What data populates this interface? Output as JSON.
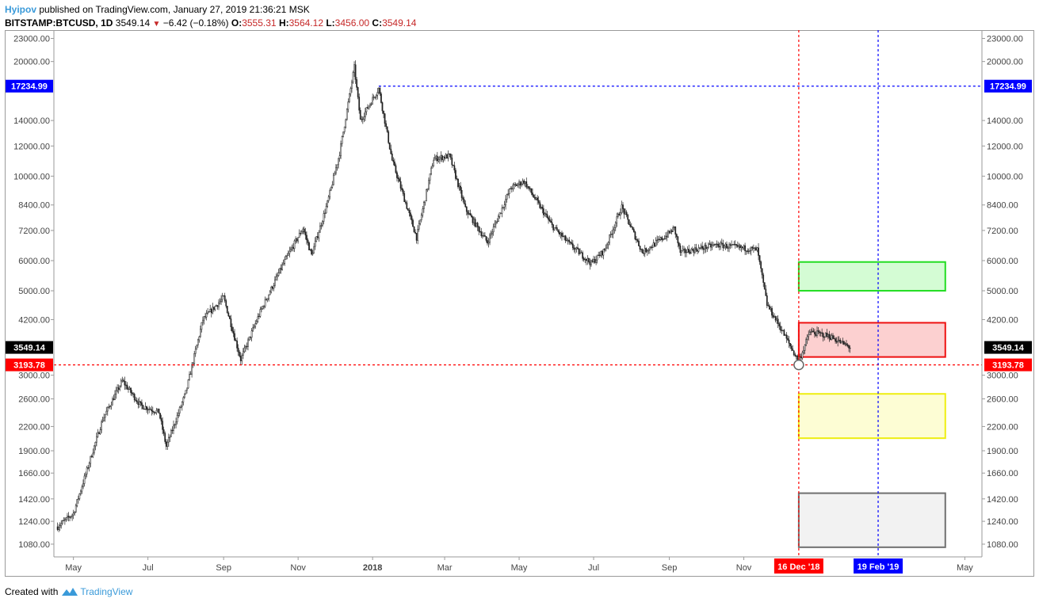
{
  "header": {
    "author": "Hyipov",
    "published_text": "published on TradingView.com, January 27, 2019 21:36:21 MSK",
    "symbol": "BITSTAMP:BTCUSD, 1D",
    "last": "3549.14",
    "change": "−6.42 (−0.18%)",
    "o_label": "O:",
    "o": "3555.31",
    "h_label": "H:",
    "h": "3564.12",
    "l_label": "L:",
    "l": "3456.00",
    "c_label": "C:",
    "c": "3549.14"
  },
  "footer": {
    "created_with": "Created with",
    "brand": "TradingView"
  },
  "chart_data": {
    "type": "candlestick",
    "scale": "log",
    "ylim": [
      1000,
      23500
    ],
    "xlim": [
      "2017-04-15",
      "2019-05-15"
    ],
    "y_ticks": [
      "23000.00",
      "20000.00",
      "14000.00",
      "12000.00",
      "10000.00",
      "8400.00",
      "7200.00",
      "6000.00",
      "5000.00",
      "4200.00",
      "3000.00",
      "2600.00",
      "2200.00",
      "1900.00",
      "1660.00",
      "1420.00",
      "1240.00",
      "1080.00"
    ],
    "x_ticks": [
      {
        "label": "May",
        "date": "2017-05-01"
      },
      {
        "label": "Jul",
        "date": "2017-07-01"
      },
      {
        "label": "Sep",
        "date": "2017-09-01"
      },
      {
        "label": "Nov",
        "date": "2017-11-01"
      },
      {
        "label": "2018",
        "date": "2018-01-01",
        "bold": true
      },
      {
        "label": "Mar",
        "date": "2018-03-01"
      },
      {
        "label": "May",
        "date": "2018-05-01"
      },
      {
        "label": "Jul",
        "date": "2018-07-01"
      },
      {
        "label": "Sep",
        "date": "2018-09-01"
      },
      {
        "label": "Nov",
        "date": "2018-11-01"
      },
      {
        "label": "May",
        "date": "2019-05-01"
      }
    ],
    "price_anchors": [
      [
        "2017-04-18",
        1200
      ],
      [
        "2017-05-01",
        1300
      ],
      [
        "2017-05-25",
        2300
      ],
      [
        "2017-06-10",
        2900
      ],
      [
        "2017-06-25",
        2500
      ],
      [
        "2017-07-10",
        2400
      ],
      [
        "2017-07-16",
        1950
      ],
      [
        "2017-08-01",
        2700
      ],
      [
        "2017-08-15",
        4200
      ],
      [
        "2017-09-01",
        4800
      ],
      [
        "2017-09-15",
        3300
      ],
      [
        "2017-10-01",
        4400
      ],
      [
        "2017-10-20",
        5900
      ],
      [
        "2017-11-05",
        7300
      ],
      [
        "2017-11-12",
        6200
      ],
      [
        "2017-11-25",
        8500
      ],
      [
        "2017-12-05",
        11500
      ],
      [
        "2017-12-17",
        19300
      ],
      [
        "2017-12-22",
        14000
      ],
      [
        "2018-01-06",
        17000
      ],
      [
        "2018-01-17",
        11000
      ],
      [
        "2018-02-06",
        6900
      ],
      [
        "2018-02-20",
        11100
      ],
      [
        "2018-03-05",
        11300
      ],
      [
        "2018-03-18",
        8200
      ],
      [
        "2018-04-05",
        6700
      ],
      [
        "2018-04-24",
        9300
      ],
      [
        "2018-05-05",
        9700
      ],
      [
        "2018-05-28",
        7400
      ],
      [
        "2018-06-12",
        6600
      ],
      [
        "2018-06-29",
        5900
      ],
      [
        "2018-07-10",
        6400
      ],
      [
        "2018-07-24",
        8300
      ],
      [
        "2018-08-10",
        6300
      ],
      [
        "2018-08-30",
        7000
      ],
      [
        "2018-09-05",
        7300
      ],
      [
        "2018-09-10",
        6300
      ],
      [
        "2018-10-10",
        6600
      ],
      [
        "2018-11-12",
        6400
      ],
      [
        "2018-11-20",
        4600
      ],
      [
        "2018-12-01",
        4000
      ],
      [
        "2018-12-16",
        3250
      ],
      [
        "2018-12-25",
        3900
      ],
      [
        "2019-01-10",
        3800
      ],
      [
        "2019-01-27",
        3549
      ]
    ],
    "horizontal_lines": [
      {
        "price": 17234.99,
        "label": "17234.99",
        "color": "#0000ff",
        "from": "2018-01-06"
      },
      {
        "price": 3193.78,
        "label": "3193.78",
        "color": "#ff0000",
        "from": "2017-04-15"
      }
    ],
    "vertical_lines": [
      {
        "date": "2018-12-16",
        "label": "16 Dec '18",
        "color": "#ff0000"
      },
      {
        "date": "2019-02-19",
        "label": "19 Feb '19",
        "color": "#0000ff"
      }
    ],
    "last_price": {
      "price": 3549.14,
      "label": "3549.14"
    },
    "zones": [
      {
        "name": "green-zone",
        "from": "2018-12-16",
        "to": "2019-04-15",
        "y1": 5000,
        "y2": 5950,
        "stroke": "#22dd22",
        "fill": "#d4fcd4"
      },
      {
        "name": "red-zone",
        "from": "2018-12-16",
        "to": "2019-04-15",
        "y1": 3350,
        "y2": 4120,
        "stroke": "#ee1111",
        "fill": "#fcd0d0"
      },
      {
        "name": "yellow-zone",
        "from": "2018-12-16",
        "to": "2019-04-15",
        "y1": 2050,
        "y2": 2680,
        "stroke": "#eeee11",
        "fill": "#fdfdd4"
      },
      {
        "name": "gray-zone",
        "from": "2018-12-16",
        "to": "2019-04-15",
        "y1": 1060,
        "y2": 1470,
        "stroke": "#707070",
        "fill": "#f2f2f2"
      }
    ],
    "marker": {
      "date": "2018-12-16",
      "price": 3193.78
    }
  }
}
